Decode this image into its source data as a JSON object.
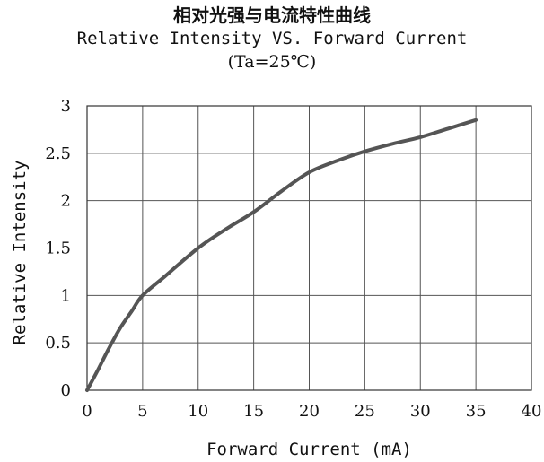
{
  "chart_data": {
    "type": "line",
    "title_cn": "相对光强与电流特性曲线",
    "title": "Relative Intensity VS. Forward Current",
    "subtitle": "(Ta=25℃)",
    "xlabel": "Forward Current (mA)",
    "ylabel": "Relative Intensity",
    "xlim": [
      0,
      40
    ],
    "ylim": [
      0,
      3
    ],
    "x_ticks": [
      "0",
      "5",
      "10",
      "15",
      "20",
      "25",
      "30",
      "35",
      "40"
    ],
    "y_ticks": [
      "0",
      "0.5",
      "1",
      "1.5",
      "2",
      "2.5",
      "3"
    ],
    "grid": true,
    "line_color": "#555555",
    "series": [
      {
        "x": [
          0,
          1,
          2,
          3,
          4,
          5,
          7,
          10,
          12.5,
          15,
          17.5,
          20,
          22.5,
          25,
          27.5,
          30,
          32.5,
          35
        ],
        "y": [
          0,
          0.22,
          0.45,
          0.66,
          0.83,
          1.0,
          1.2,
          1.5,
          1.7,
          1.88,
          2.1,
          2.3,
          2.42,
          2.52,
          2.6,
          2.67,
          2.76,
          2.85
        ]
      }
    ]
  }
}
